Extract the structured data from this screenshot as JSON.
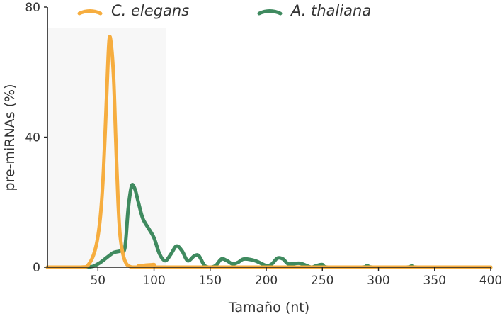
{
  "chart_data": {
    "type": "line",
    "xlabel": "Tamaño (nt)",
    "ylabel": "pre-miRNAs (%)",
    "xlim": [
      5,
      400
    ],
    "ylim": [
      0,
      80
    ],
    "x_ticks": [
      "50",
      "100",
      "150",
      "200",
      "250",
      "300",
      "350",
      "400"
    ],
    "y_ticks": [
      "0",
      "40",
      "80"
    ],
    "grid": false,
    "legend_position": "top",
    "series": [
      {
        "name": "C. elegans",
        "color": "#f6ad3f",
        "points": [
          [
            5,
            0
          ],
          [
            35,
            0
          ],
          [
            42,
            1
          ],
          [
            48,
            6
          ],
          [
            52,
            15
          ],
          [
            55,
            30
          ],
          [
            58,
            55
          ],
          [
            60,
            70
          ],
          [
            62,
            68
          ],
          [
            64,
            58
          ],
          [
            66,
            38
          ],
          [
            68,
            20
          ],
          [
            70,
            9
          ],
          [
            74,
            2
          ],
          [
            80,
            0
          ],
          [
            90,
            0
          ],
          [
            100,
            0.8
          ],
          [
            110,
            0
          ],
          [
            400,
            0
          ]
        ]
      },
      {
        "name": "A. thaliana",
        "color": "#3f8a5f",
        "points": [
          [
            5,
            0
          ],
          [
            40,
            0
          ],
          [
            50,
            1
          ],
          [
            58,
            3
          ],
          [
            64,
            4.5
          ],
          [
            70,
            5
          ],
          [
            74,
            6
          ],
          [
            77,
            18
          ],
          [
            80,
            25
          ],
          [
            83,
            24
          ],
          [
            86,
            20
          ],
          [
            90,
            15
          ],
          [
            95,
            12
          ],
          [
            100,
            9
          ],
          [
            105,
            4
          ],
          [
            110,
            2
          ],
          [
            115,
            4
          ],
          [
            120,
            6.5
          ],
          [
            125,
            5
          ],
          [
            130,
            2
          ],
          [
            136,
            3.5
          ],
          [
            140,
            3.5
          ],
          [
            145,
            0.5
          ],
          [
            150,
            0
          ],
          [
            155,
            0.5
          ],
          [
            160,
            2.5
          ],
          [
            165,
            2
          ],
          [
            170,
            1
          ],
          [
            175,
            1.5
          ],
          [
            180,
            2.5
          ],
          [
            190,
            2
          ],
          [
            200,
            0.5
          ],
          [
            205,
            1
          ],
          [
            210,
            2.8
          ],
          [
            215,
            2.5
          ],
          [
            220,
            1
          ],
          [
            230,
            1.2
          ],
          [
            240,
            0
          ],
          [
            245,
            0.5
          ],
          [
            250,
            0.8
          ],
          [
            255,
            0
          ],
          [
            285,
            0
          ],
          [
            290,
            0.5
          ],
          [
            295,
            0
          ],
          [
            325,
            0
          ],
          [
            330,
            0.5
          ],
          [
            335,
            0
          ],
          [
            400,
            0
          ]
        ]
      }
    ]
  }
}
